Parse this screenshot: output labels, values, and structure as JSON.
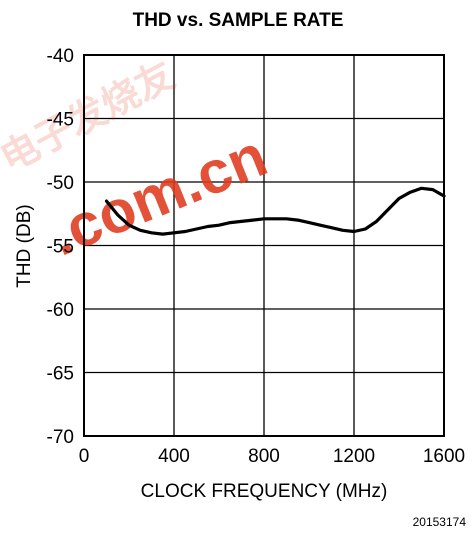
{
  "chart_data": {
    "type": "line",
    "title": "THD vs. SAMPLE RATE",
    "xlabel": "CLOCK FREQUENCY (MHz)",
    "ylabel": "THD (DB)",
    "xlim": [
      0,
      1600
    ],
    "ylim": [
      -70,
      -40
    ],
    "xticks": [
      0,
      400,
      800,
      1200,
      1600
    ],
    "yticks": [
      -40,
      -45,
      -50,
      -55,
      -60,
      -65,
      -70
    ],
    "grid": true,
    "series": [
      {
        "x": [
          100,
          150,
          200,
          250,
          300,
          350,
          400,
          450,
          500,
          550,
          600,
          650,
          700,
          750,
          800,
          850,
          900,
          950,
          1000,
          1050,
          1100,
          1150,
          1200,
          1250,
          1300,
          1350,
          1400,
          1450,
          1500,
          1550,
          1600
        ],
        "y": [
          -51.5,
          -52.6,
          -53.4,
          -53.8,
          -54.0,
          -54.1,
          -54.0,
          -53.9,
          -53.7,
          -53.5,
          -53.4,
          -53.2,
          -53.1,
          -53.0,
          -52.9,
          -52.9,
          -52.9,
          -53.0,
          -53.2,
          -53.4,
          -53.6,
          -53.8,
          -53.9,
          -53.7,
          -53.1,
          -52.2,
          -51.3,
          -50.8,
          -50.5,
          -50.6,
          -51.1
        ],
        "color": "#000000"
      }
    ]
  },
  "figure_id": "20153174",
  "watermark": {
    "cjk": "电子发烧友",
    "latin": ".com.cn",
    "color": "#e03a1e"
  }
}
